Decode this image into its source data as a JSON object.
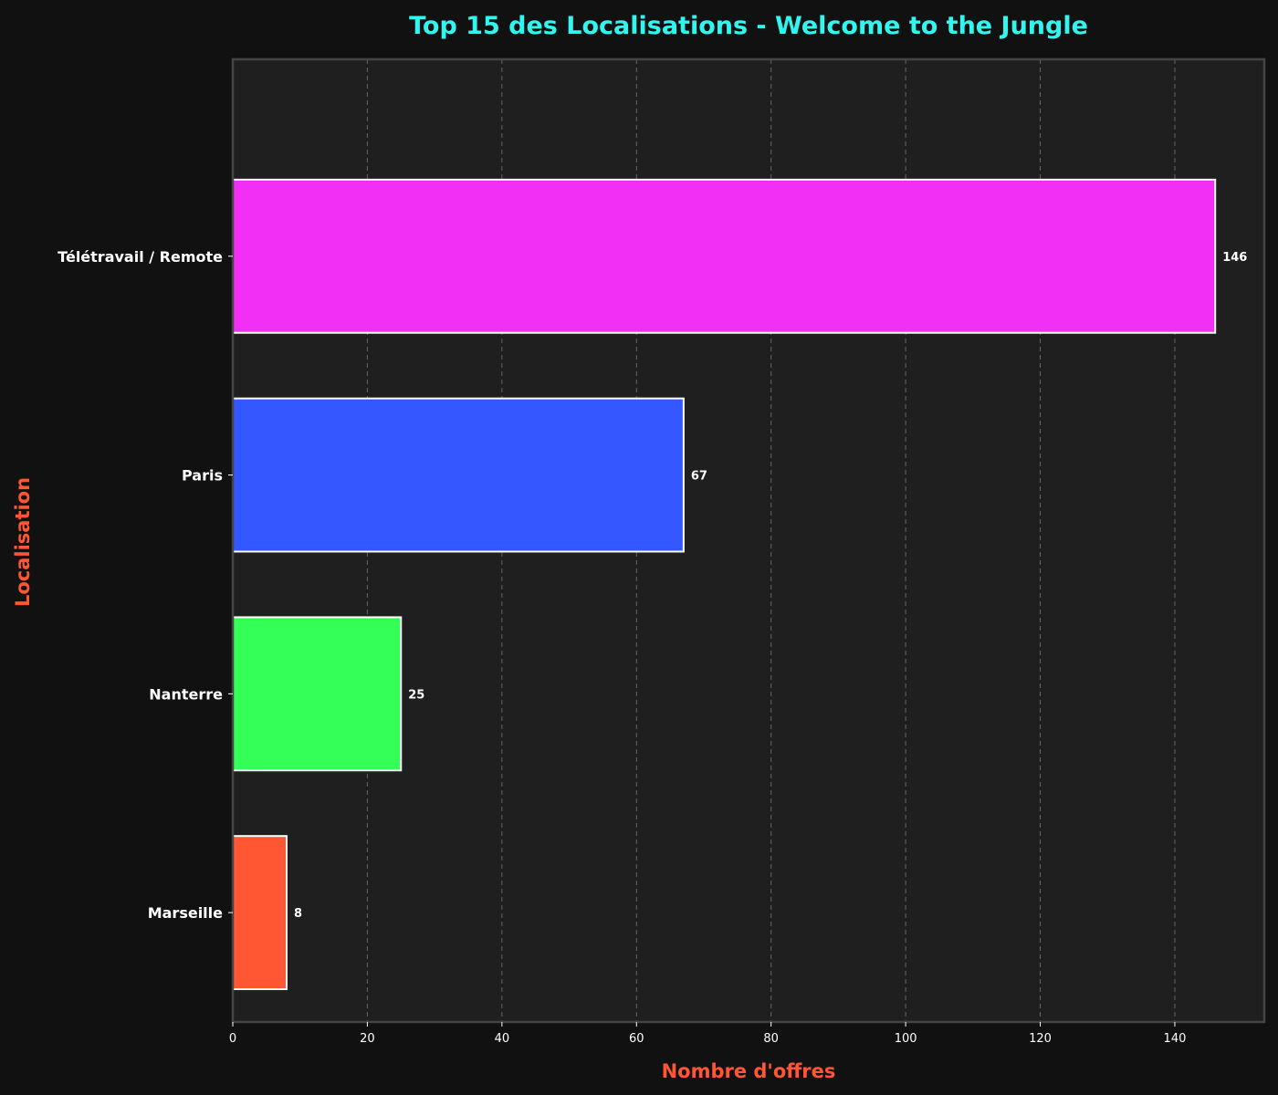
{
  "chart_data": {
    "type": "bar",
    "orientation": "horizontal",
    "title": "Top 15 des Localisations - Welcome to the Jungle",
    "xlabel": "Nombre d'offres",
    "ylabel": "Localisation",
    "categories": [
      "Télétravail / Remote",
      "Paris",
      "Nanterre",
      "Marseille"
    ],
    "values": [
      146,
      67,
      25,
      8
    ],
    "data_labels": [
      "146",
      "67",
      "25",
      "8"
    ],
    "bar_colors": [
      "#f22ff5",
      "#3358ff",
      "#33ff57",
      "#ff5733"
    ],
    "xlim": [
      0,
      153.3
    ],
    "xticks": [
      0,
      20,
      40,
      60,
      80,
      100,
      120,
      140
    ],
    "xtick_labels": [
      "0",
      "20",
      "40",
      "60",
      "80",
      "100",
      "120",
      "140"
    ],
    "grid": "vertical dashed",
    "colors": {
      "background": "#111111",
      "plot_background": "#1f1f1f",
      "title": "#33f5f0",
      "axis_label": "#ff5733",
      "text": "#ffffff",
      "grid": "#666666",
      "frame": "#444444",
      "bar_edge": "#ffffff"
    }
  }
}
